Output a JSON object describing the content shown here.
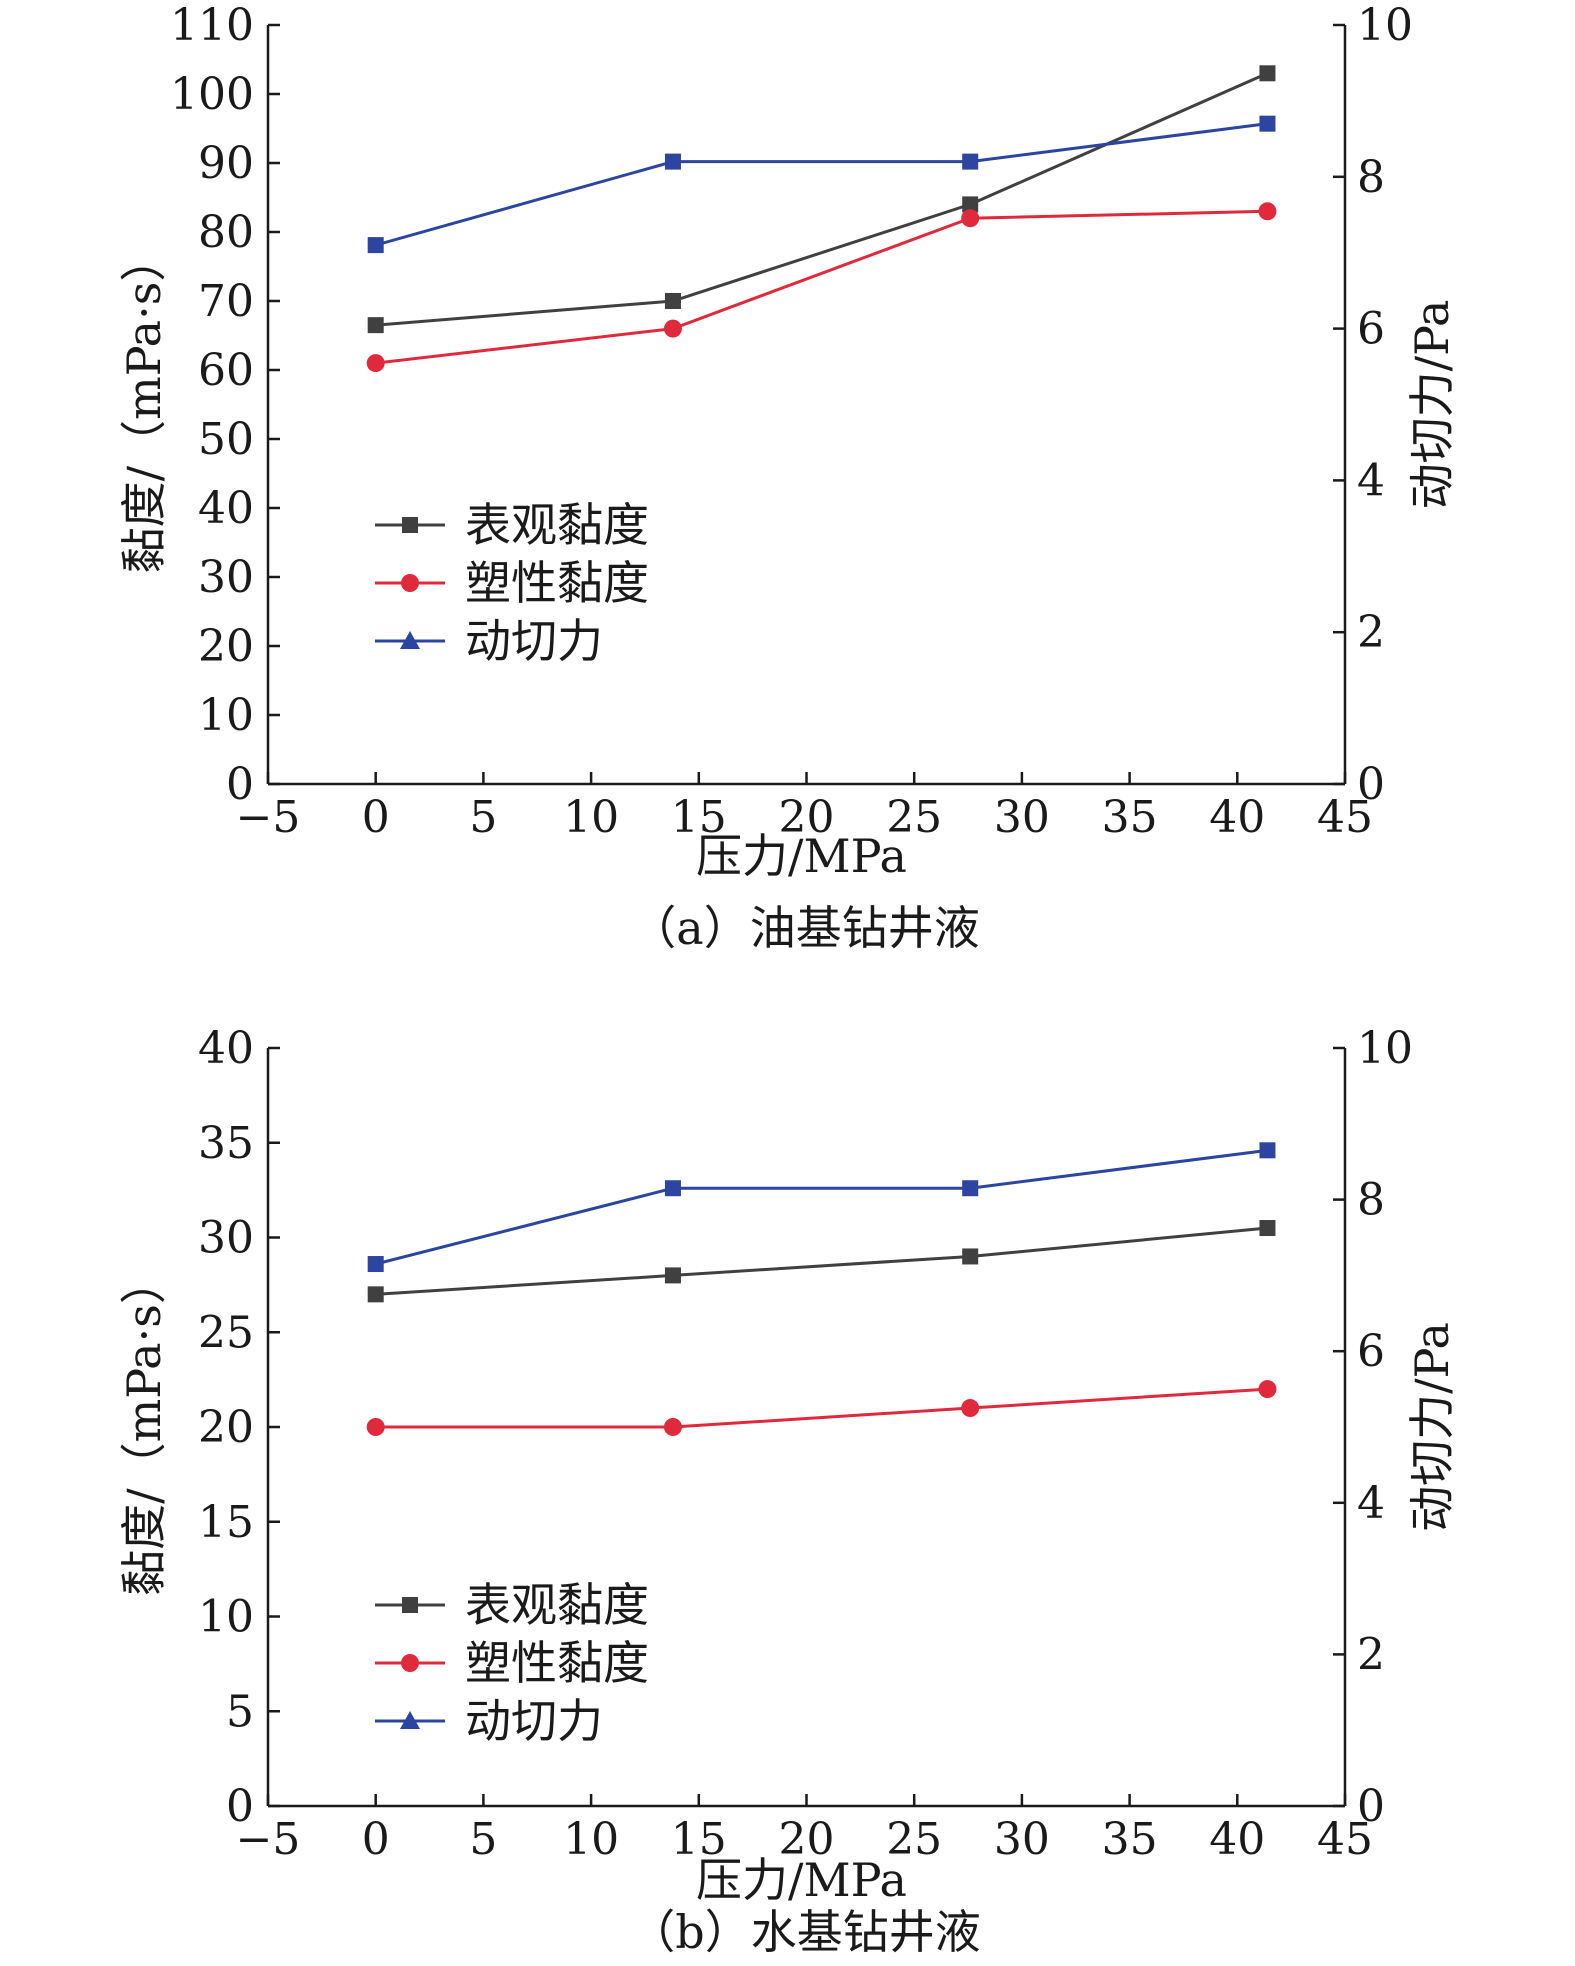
{
  "colors": {
    "apparent": "#404040",
    "plastic": "#e02a3c",
    "yield": "#2b45a0",
    "axis": "#1a1a1a"
  },
  "chart_data": [
    {
      "type": "line",
      "caption": "（a）油基钻井液",
      "xlabel": "压力/MPa",
      "ylabel": "黏度/（mPa·s）",
      "y2label": "动切力/Pa",
      "xlim": [
        -5,
        45
      ],
      "xticks": [
        -5,
        0,
        5,
        10,
        15,
        20,
        25,
        30,
        35,
        40,
        45
      ],
      "ylim": [
        0,
        110
      ],
      "yticks": [
        0,
        10,
        20,
        30,
        40,
        50,
        60,
        70,
        80,
        90,
        100,
        110
      ],
      "y2lim": [
        0,
        10
      ],
      "y2ticks": [
        0,
        2,
        4,
        6,
        8,
        10
      ],
      "x": [
        0,
        13.8,
        27.6,
        41.4
      ],
      "series": [
        {
          "name": "表观黏度",
          "axis": "left",
          "marker": "square",
          "values": [
            66.5,
            70,
            84,
            103
          ]
        },
        {
          "name": "塑性黏度",
          "axis": "left",
          "marker": "circle",
          "values": [
            61,
            66,
            82,
            83
          ]
        },
        {
          "name": "动切力",
          "axis": "right",
          "marker": "square",
          "legend_marker": "triangle",
          "values": [
            7.1,
            8.2,
            8.2,
            8.7
          ]
        }
      ],
      "legend": [
        "表观黏度",
        "塑性黏度",
        "动切力"
      ]
    },
    {
      "type": "line",
      "caption": "（b）水基钻井液",
      "xlabel": "压力/MPa",
      "ylabel": "黏度/（mPa·s）",
      "y2label": "动切力/Pa",
      "xlim": [
        -5,
        45
      ],
      "xticks": [
        -5,
        0,
        5,
        10,
        15,
        20,
        25,
        30,
        35,
        40,
        45
      ],
      "ylim": [
        0,
        40
      ],
      "yticks": [
        0,
        5,
        10,
        15,
        20,
        25,
        30,
        35,
        40
      ],
      "y2lim": [
        0,
        10
      ],
      "y2ticks": [
        0,
        2,
        4,
        6,
        8,
        10
      ],
      "x": [
        0,
        13.8,
        27.6,
        41.4
      ],
      "series": [
        {
          "name": "表观黏度",
          "axis": "left",
          "marker": "square",
          "values": [
            27,
            28,
            29,
            30.5
          ]
        },
        {
          "name": "塑性黏度",
          "axis": "left",
          "marker": "circle",
          "values": [
            20,
            20,
            21,
            22
          ]
        },
        {
          "name": "动切力",
          "axis": "right",
          "marker": "square",
          "legend_marker": "triangle",
          "values": [
            7.15,
            8.15,
            8.15,
            8.65
          ]
        }
      ],
      "legend": [
        "表观黏度",
        "塑性黏度",
        "动切力"
      ]
    }
  ]
}
